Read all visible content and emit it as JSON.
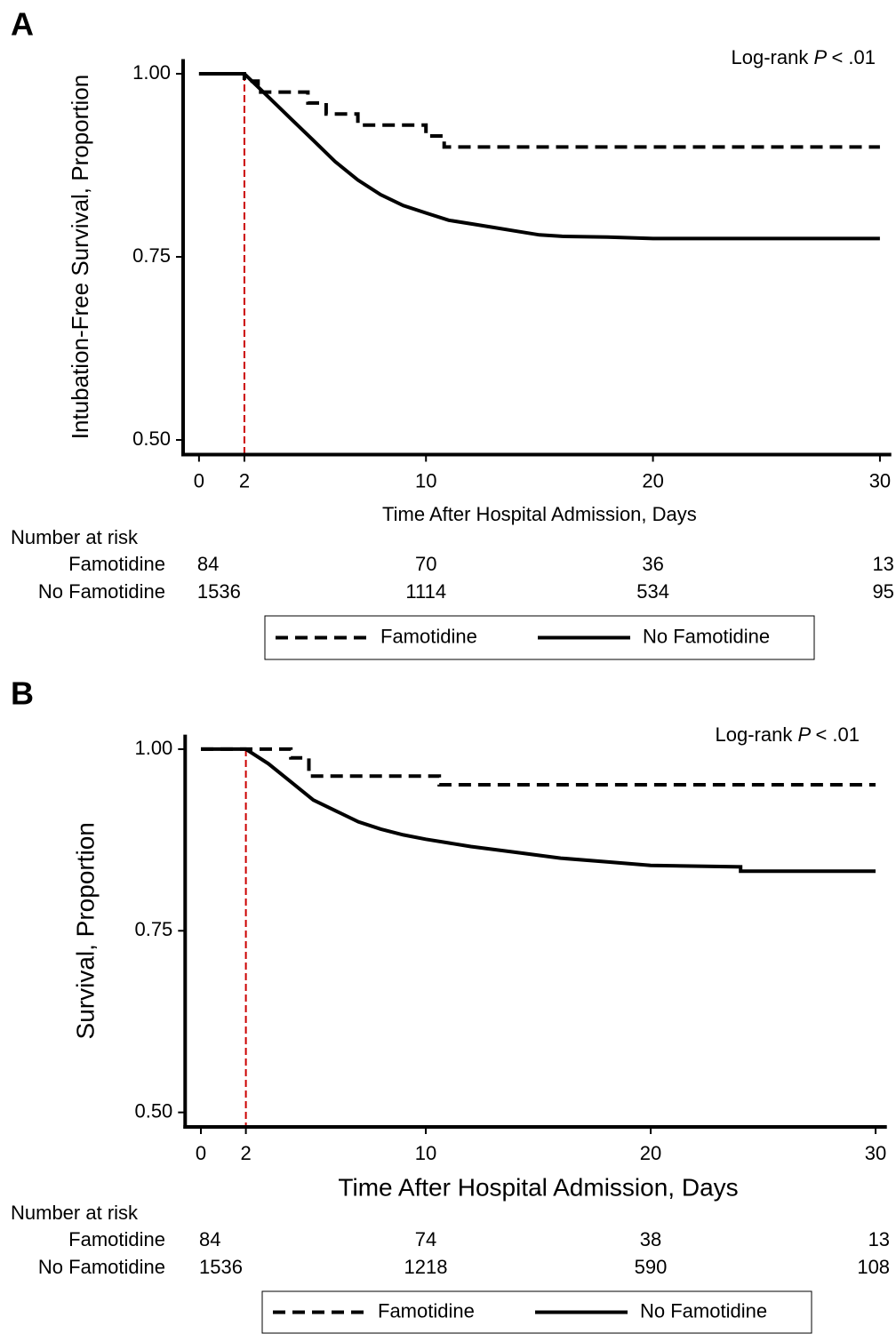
{
  "chart_data": [
    {
      "type": "line",
      "panel_label": "A",
      "annotation": [
        "Log-rank",
        "P",
        "< .01"
      ],
      "y_label": "Intubation-Free Survival, Proportion",
      "x_label": "Time After Hospital Admission, Days",
      "xlim": [
        -0.7,
        30.5
      ],
      "ylim": [
        0.48,
        1.02
      ],
      "xticks": [
        0,
        2,
        10,
        20,
        30
      ],
      "yticks": [
        {
          "value": 1,
          "label": "1.00"
        },
        {
          "value": 0.75,
          "label": "0.75"
        },
        {
          "value": 0.5,
          "label": "0.50"
        }
      ],
      "vline": 2,
      "vline_color": "#cc0000",
      "series": [
        {
          "name": "Famotidine",
          "color": "#000000",
          "line_style": "dashed",
          "x": [
            0,
            2,
            2,
            2.6,
            2.6,
            4.8,
            4.8,
            5.6,
            5.6,
            7,
            7,
            10,
            10,
            10.8,
            10.8,
            30
          ],
          "values": [
            1,
            1,
            0.99,
            0.99,
            0.975,
            0.975,
            0.96,
            0.96,
            0.945,
            0.945,
            0.93,
            0.93,
            0.915,
            0.915,
            0.9,
            0.9
          ]
        },
        {
          "name": "No Famotidine",
          "color": "#000000",
          "line_style": "solid",
          "x": [
            0,
            2,
            3,
            4,
            5,
            6,
            7,
            8,
            9,
            10,
            11,
            12,
            13,
            14,
            15,
            16,
            18,
            20,
            30
          ],
          "values": [
            1,
            1,
            0.97,
            0.94,
            0.91,
            0.88,
            0.855,
            0.835,
            0.82,
            0.81,
            0.8,
            0.795,
            0.79,
            0.785,
            0.78,
            0.778,
            0.777,
            0.775,
            0.775
          ]
        }
      ],
      "risk_table": {
        "title": "Number at risk",
        "times": [
          0,
          10,
          20,
          30
        ],
        "rows": [
          {
            "name": "Famotidine",
            "values": [
              84,
              70,
              36,
              13
            ]
          },
          {
            "name": "No Famotidine",
            "values": [
              1536,
              1114,
              534,
              95
            ]
          }
        ]
      },
      "legend": "bottom"
    },
    {
      "type": "line",
      "panel_label": "B",
      "annotation": [
        "Log-rank",
        "P",
        "< .01"
      ],
      "y_label": "Survival, Proportion",
      "x_label": "Time After Hospital Admission, Days",
      "xlim": [
        -0.7,
        30.5
      ],
      "ylim": [
        0.48,
        1.02
      ],
      "xticks": [
        0,
        2,
        10,
        20,
        30
      ],
      "yticks": [
        {
          "value": 1,
          "label": "1.00"
        },
        {
          "value": 0.75,
          "label": "0.75"
        },
        {
          "value": 0.5,
          "label": "0.50"
        }
      ],
      "vline": 2,
      "vline_color": "#cc0000",
      "series": [
        {
          "name": "Famotidine",
          "color": "#000000",
          "line_style": "dashed",
          "x": [
            0,
            4,
            4,
            4.8,
            4.8,
            10.6,
            10.6,
            30
          ],
          "values": [
            1,
            1,
            0.988,
            0.988,
            0.963,
            0.963,
            0.951,
            0.951
          ]
        },
        {
          "name": "No Famotidine",
          "color": "#000000",
          "line_style": "solid",
          "x": [
            0,
            2,
            3,
            4,
            5,
            6,
            7,
            8,
            9,
            10,
            11,
            12,
            14,
            16,
            18,
            20,
            24,
            24,
            30
          ],
          "values": [
            1,
            1,
            0.98,
            0.955,
            0.93,
            0.915,
            0.9,
            0.89,
            0.882,
            0.876,
            0.871,
            0.866,
            0.858,
            0.85,
            0.845,
            0.84,
            0.838,
            0.832,
            0.832
          ]
        }
      ],
      "risk_table": {
        "title": "Number at risk",
        "times": [
          0,
          10,
          20,
          30
        ],
        "rows": [
          {
            "name": "Famotidine",
            "values": [
              84,
              74,
              38,
              13
            ]
          },
          {
            "name": "No Famotidine",
            "values": [
              1536,
              1218,
              590,
              108
            ]
          }
        ]
      },
      "legend": "bottom"
    }
  ]
}
